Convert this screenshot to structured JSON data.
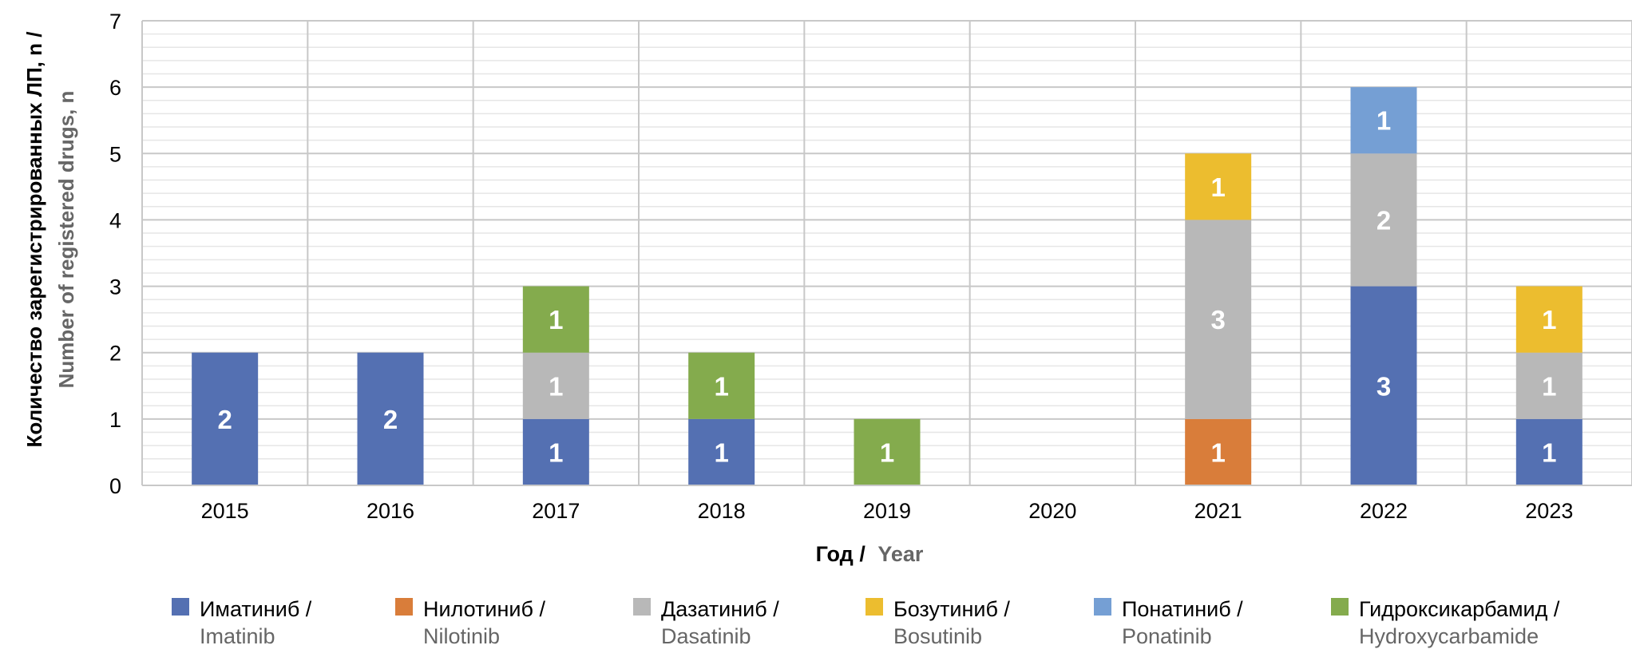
{
  "chart_data": {
    "type": "bar",
    "stacked": true,
    "categories": [
      "2015",
      "2016",
      "2017",
      "2018",
      "2019",
      "2020",
      "2021",
      "2022",
      "2023"
    ],
    "series": [
      {
        "name_ru": "Иматиниб /",
        "name_en": "Imatinib",
        "color": "#5470b2",
        "values": [
          2,
          2,
          1,
          1,
          0,
          0,
          0,
          3,
          1
        ]
      },
      {
        "name_ru": "Нилотиниб /",
        "name_en": "Nilotinib",
        "color": "#d97d3a",
        "values": [
          0,
          0,
          0,
          0,
          0,
          0,
          1,
          0,
          0
        ]
      },
      {
        "name_ru": "Дазатиниб /",
        "name_en": "Dasatinib",
        "color": "#b8b8b8",
        "values": [
          0,
          0,
          1,
          0,
          0,
          0,
          3,
          2,
          1
        ]
      },
      {
        "name_ru": "Бозутиниб /",
        "name_en": "Bosutinib",
        "color": "#ecbd2f",
        "values": [
          0,
          0,
          0,
          0,
          0,
          0,
          1,
          0,
          1
        ]
      },
      {
        "name_ru": "Понатиниб /",
        "name_en": "Ponatinib",
        "color": "#759fd4",
        "values": [
          0,
          0,
          0,
          0,
          0,
          0,
          0,
          1,
          0
        ]
      },
      {
        "name_ru": "Гидроксикарбамид /",
        "name_en": "Hydroxycarbamide",
        "color": "#84ab4d",
        "values": [
          0,
          0,
          1,
          1,
          1,
          0,
          0,
          0,
          0
        ]
      }
    ],
    "ylim": [
      0,
      7
    ],
    "yticks": [
      "0",
      "1",
      "2",
      "3",
      "4",
      "5",
      "6",
      "7"
    ],
    "ylabel_ru": "Количество зарегистрированных ЛП, n /",
    "ylabel_en": "Number of registered drugs, n",
    "xlabel_ru": "Год /",
    "xlabel_en": "Year",
    "grid": true,
    "legend_position": "bottom"
  }
}
